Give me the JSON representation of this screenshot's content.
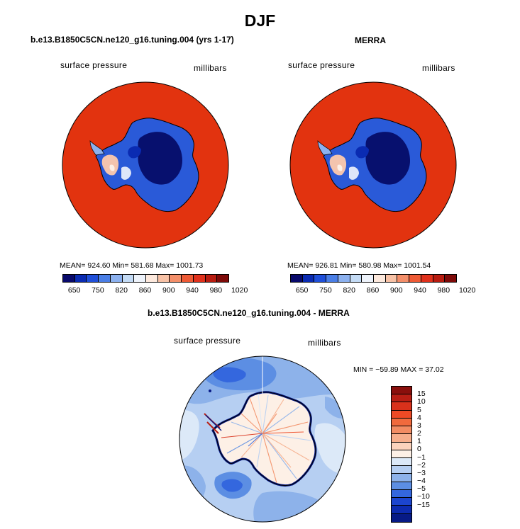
{
  "title": "DJF",
  "panel_left": {
    "case": "b.e13.B1850C5CN.ne120_g16.tuning.004 (yrs 1-17)",
    "variable": "surface pressure",
    "units": "millibars",
    "stats": "MEAN= 924.60   Min= 581.68   Max= 1001.73"
  },
  "panel_right": {
    "case": "MERRA",
    "variable": "surface pressure",
    "units": "millibars",
    "stats": "MEAN= 926.81   Min= 580.98   Max= 1001.54"
  },
  "panel_diff": {
    "case": "b.e13.B1850C5CN.ne120_g16.tuning.004 - MERRA",
    "variable": "surface pressure",
    "units": "millibars",
    "stats": "MIN = −59.89 MAX =  37.02"
  },
  "abs_colorbar": {
    "tick_labels": [
      "650",
      "750",
      "820",
      "860",
      "900",
      "940",
      "980",
      "1020"
    ],
    "colors": [
      "#08096b",
      "#0a2bb2",
      "#1f4fd9",
      "#4a7ee6",
      "#8cb1ef",
      "#c4dbf5",
      "#eef3fb",
      "#fde9dd",
      "#f8c2a6",
      "#f48f6a",
      "#ee5a35",
      "#e0311c",
      "#b81c10",
      "#7e0a08"
    ]
  },
  "diff_colorbar": {
    "labels": [
      "15",
      "10",
      "5",
      "4",
      "3",
      "2",
      "1",
      "0",
      "−1",
      "−2",
      "−3",
      "−4",
      "−5",
      "−10",
      "−15"
    ],
    "colors": [
      "#8a0f0c",
      "#b81e14",
      "#d9311b",
      "#ee4a25",
      "#f06a3d",
      "#f28c63",
      "#f6ae8c",
      "#fbd3bd",
      "#fdf0e6",
      "#dce9f8",
      "#b6cff2",
      "#8db2ea",
      "#5c8ee3",
      "#3467de",
      "#1c45cf",
      "#0d2bb0",
      "#071a86"
    ]
  }
}
